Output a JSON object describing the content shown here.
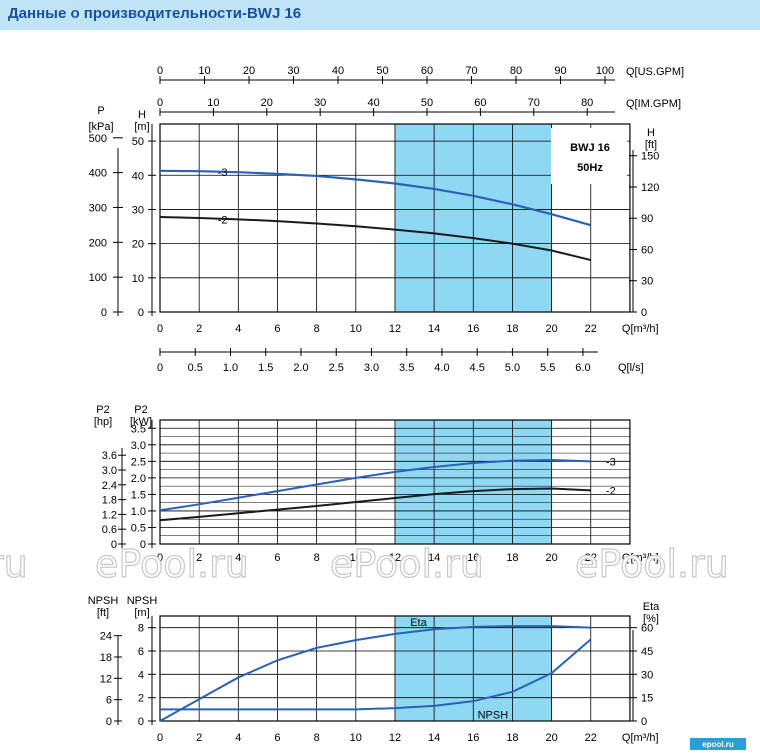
{
  "header": {
    "title": "Данные о производительности-BWJ 16"
  },
  "chart_data": [
    {
      "type": "line",
      "id": "head",
      "title": "BWJ 16\n50Hz",
      "x_axis_label": "Q[m³/h]",
      "x_range": [
        0,
        24
      ],
      "x_ticks": [
        "0",
        "2",
        "4",
        "6",
        "8",
        "10",
        "12",
        "14",
        "16",
        "18",
        "20",
        "22"
      ],
      "highlight_range": [
        12,
        20
      ],
      "left_axis_1": {
        "label": "P",
        "unit": "[kPa]",
        "ticks": [
          "0",
          "100",
          "200",
          "300",
          "400",
          "500"
        ]
      },
      "left_axis_2": {
        "label": "H",
        "unit": "[m]",
        "range": [
          0,
          55
        ],
        "ticks": [
          "0",
          "10",
          "20",
          "30",
          "40",
          "50"
        ]
      },
      "right_axis": {
        "label": "H",
        "unit": "[ft]",
        "ticks": [
          "0",
          "30",
          "60",
          "90",
          "120",
          "150"
        ]
      },
      "top_axis_1": {
        "label": "Q[US.GPM]",
        "ticks": [
          "0",
          "10",
          "20",
          "30",
          "40",
          "50",
          "60",
          "70",
          "80",
          "90",
          "100"
        ]
      },
      "top_axis_2": {
        "label": "Q[IM.GPM]",
        "ticks": [
          "0",
          "10",
          "20",
          "30",
          "40",
          "50",
          "60",
          "70",
          "80"
        ]
      },
      "bottom_axis_2": {
        "label": "Q[l/s]",
        "ticks": [
          "0",
          "0.5",
          "1.0",
          "1.5",
          "2.0",
          "2.5",
          "3.0",
          "3.5",
          "4.0",
          "4.5",
          "5.0",
          "5.5",
          "6.0"
        ]
      },
      "series": [
        {
          "name": "-3",
          "color": "#2a62b8",
          "x": [
            0,
            2,
            4,
            6,
            8,
            10,
            12,
            14,
            16,
            18,
            20,
            22
          ],
          "y": [
            41.3,
            41.2,
            40.9,
            40.4,
            39.8,
            38.8,
            37.6,
            36.0,
            34.0,
            31.5,
            28.6,
            25.4
          ]
        },
        {
          "name": "-2",
          "color": "#1a1a1a",
          "x": [
            0,
            2,
            4,
            6,
            8,
            10,
            12,
            14,
            16,
            18,
            20,
            22
          ],
          "y": [
            27.8,
            27.5,
            27.1,
            26.6,
            25.9,
            25.1,
            24.1,
            23.0,
            21.6,
            20.0,
            18.0,
            15.2
          ]
        }
      ]
    },
    {
      "type": "line",
      "id": "power",
      "x_axis_label": "Q[m³/h]",
      "x_range": [
        0,
        24
      ],
      "x_ticks": [
        "0",
        "2",
        "4",
        "6",
        "8",
        "10",
        "12",
        "14",
        "16",
        "18",
        "20",
        "22"
      ],
      "highlight_range": [
        12,
        20
      ],
      "left_axis_1": {
        "label": "P2",
        "unit": "[hp]",
        "ticks": [
          "0",
          "0.6",
          "1.2",
          "1.8",
          "2.4",
          "3.0",
          "3.6"
        ]
      },
      "left_axis_2": {
        "label": "P2",
        "unit": "[kW]",
        "range": [
          0,
          3.75
        ],
        "ticks": [
          "0",
          "0.5",
          "1.0",
          "1.5",
          "2.0",
          "2.5",
          "3.0",
          "3.5"
        ]
      },
      "series": [
        {
          "name": "-3",
          "color": "#2a62b8",
          "x": [
            0,
            2,
            4,
            6,
            8,
            10,
            12,
            14,
            16,
            18,
            20,
            22
          ],
          "y": [
            1.02,
            1.2,
            1.4,
            1.6,
            1.8,
            2.0,
            2.18,
            2.33,
            2.45,
            2.52,
            2.54,
            2.5
          ]
        },
        {
          "name": "-2",
          "color": "#1a1a1a",
          "x": [
            0,
            2,
            4,
            6,
            8,
            10,
            12,
            14,
            16,
            18,
            20,
            22
          ],
          "y": [
            0.72,
            0.82,
            0.93,
            1.04,
            1.15,
            1.27,
            1.39,
            1.51,
            1.6,
            1.66,
            1.68,
            1.62
          ]
        }
      ]
    },
    {
      "type": "line",
      "id": "npsh-eta",
      "x_axis_label": "Q[m³/h]",
      "x_range": [
        0,
        24
      ],
      "x_ticks": [
        "0",
        "2",
        "4",
        "6",
        "8",
        "10",
        "12",
        "14",
        "16",
        "18",
        "20",
        "22"
      ],
      "highlight_range": [
        12,
        20
      ],
      "left_axis_1": {
        "label": "NPSH",
        "unit": "[ft]",
        "ticks": [
          "0",
          "6",
          "12",
          "18",
          "24"
        ]
      },
      "left_axis_2": {
        "label": "NPSH",
        "unit": "[m]",
        "range": [
          0,
          9
        ],
        "ticks": [
          "0",
          "2",
          "4",
          "6",
          "8"
        ]
      },
      "right_axis": {
        "label": "Eta",
        "unit": "[%]",
        "range": [
          0,
          67.5
        ],
        "ticks": [
          "0",
          "15",
          "30",
          "45",
          "60"
        ]
      },
      "series": [
        {
          "name": "Eta",
          "axis": "right",
          "color": "#2a62b8",
          "x": [
            0,
            2,
            4,
            6,
            8,
            10,
            12,
            14,
            16,
            18,
            20,
            22
          ],
          "y": [
            0,
            14,
            28,
            39,
            47,
            52,
            56,
            59,
            60.5,
            61,
            61,
            60
          ]
        },
        {
          "name": "NPSH",
          "axis": "left",
          "color": "#2a62b8",
          "x": [
            0,
            2,
            4,
            6,
            8,
            10,
            12,
            14,
            16,
            18,
            20,
            22
          ],
          "y": [
            1.0,
            1.0,
            1.0,
            1.0,
            1.0,
            1.0,
            1.1,
            1.3,
            1.7,
            2.5,
            4.1,
            7.0
          ]
        }
      ]
    }
  ],
  "watermark": {
    "text": "ePool.ru",
    "partial_text": "ru",
    "logo_text": "epool.ru"
  }
}
